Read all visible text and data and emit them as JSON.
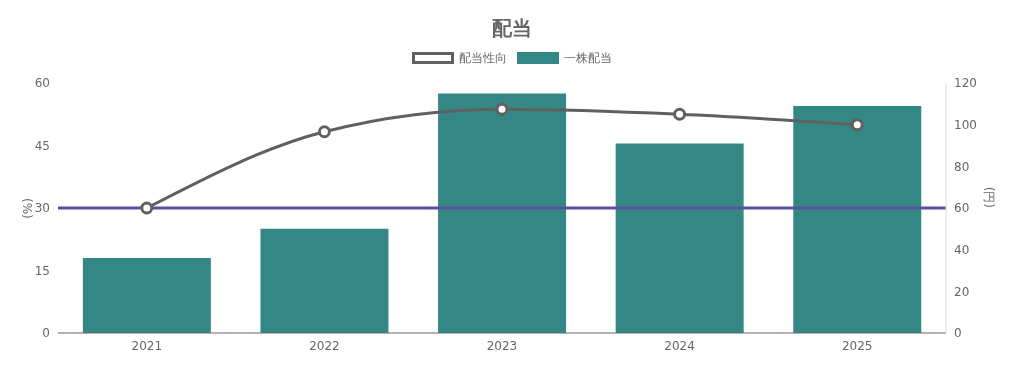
{
  "chart_data": {
    "type": "bar",
    "title": "配当",
    "categories": [
      "2021",
      "2022",
      "2023",
      "2024",
      "2025"
    ],
    "series": [
      {
        "name": "配当性向",
        "type": "line",
        "axis": "y",
        "color": "#606060",
        "values": [
          30,
          48.3,
          53.7,
          52.5,
          50
        ]
      },
      {
        "name": "一株配当",
        "axis": "y2",
        "color": "#338886",
        "values": [
          36,
          50,
          115,
          91,
          109
        ]
      }
    ],
    "ylabel": "(%)",
    "y2label": "(円)",
    "ylim": [
      0,
      60
    ],
    "yticks": [
      0,
      15,
      30,
      45,
      60
    ],
    "y2lim": [
      0,
      120
    ],
    "y2ticks": [
      0,
      20,
      40,
      60,
      80,
      100,
      120
    ],
    "ref_lines": [
      {
        "axis": "y",
        "value": 30,
        "color": "#5b4f9e"
      }
    ],
    "legend": "top",
    "grid": false,
    "marker": "circle",
    "line_style": "solid"
  }
}
